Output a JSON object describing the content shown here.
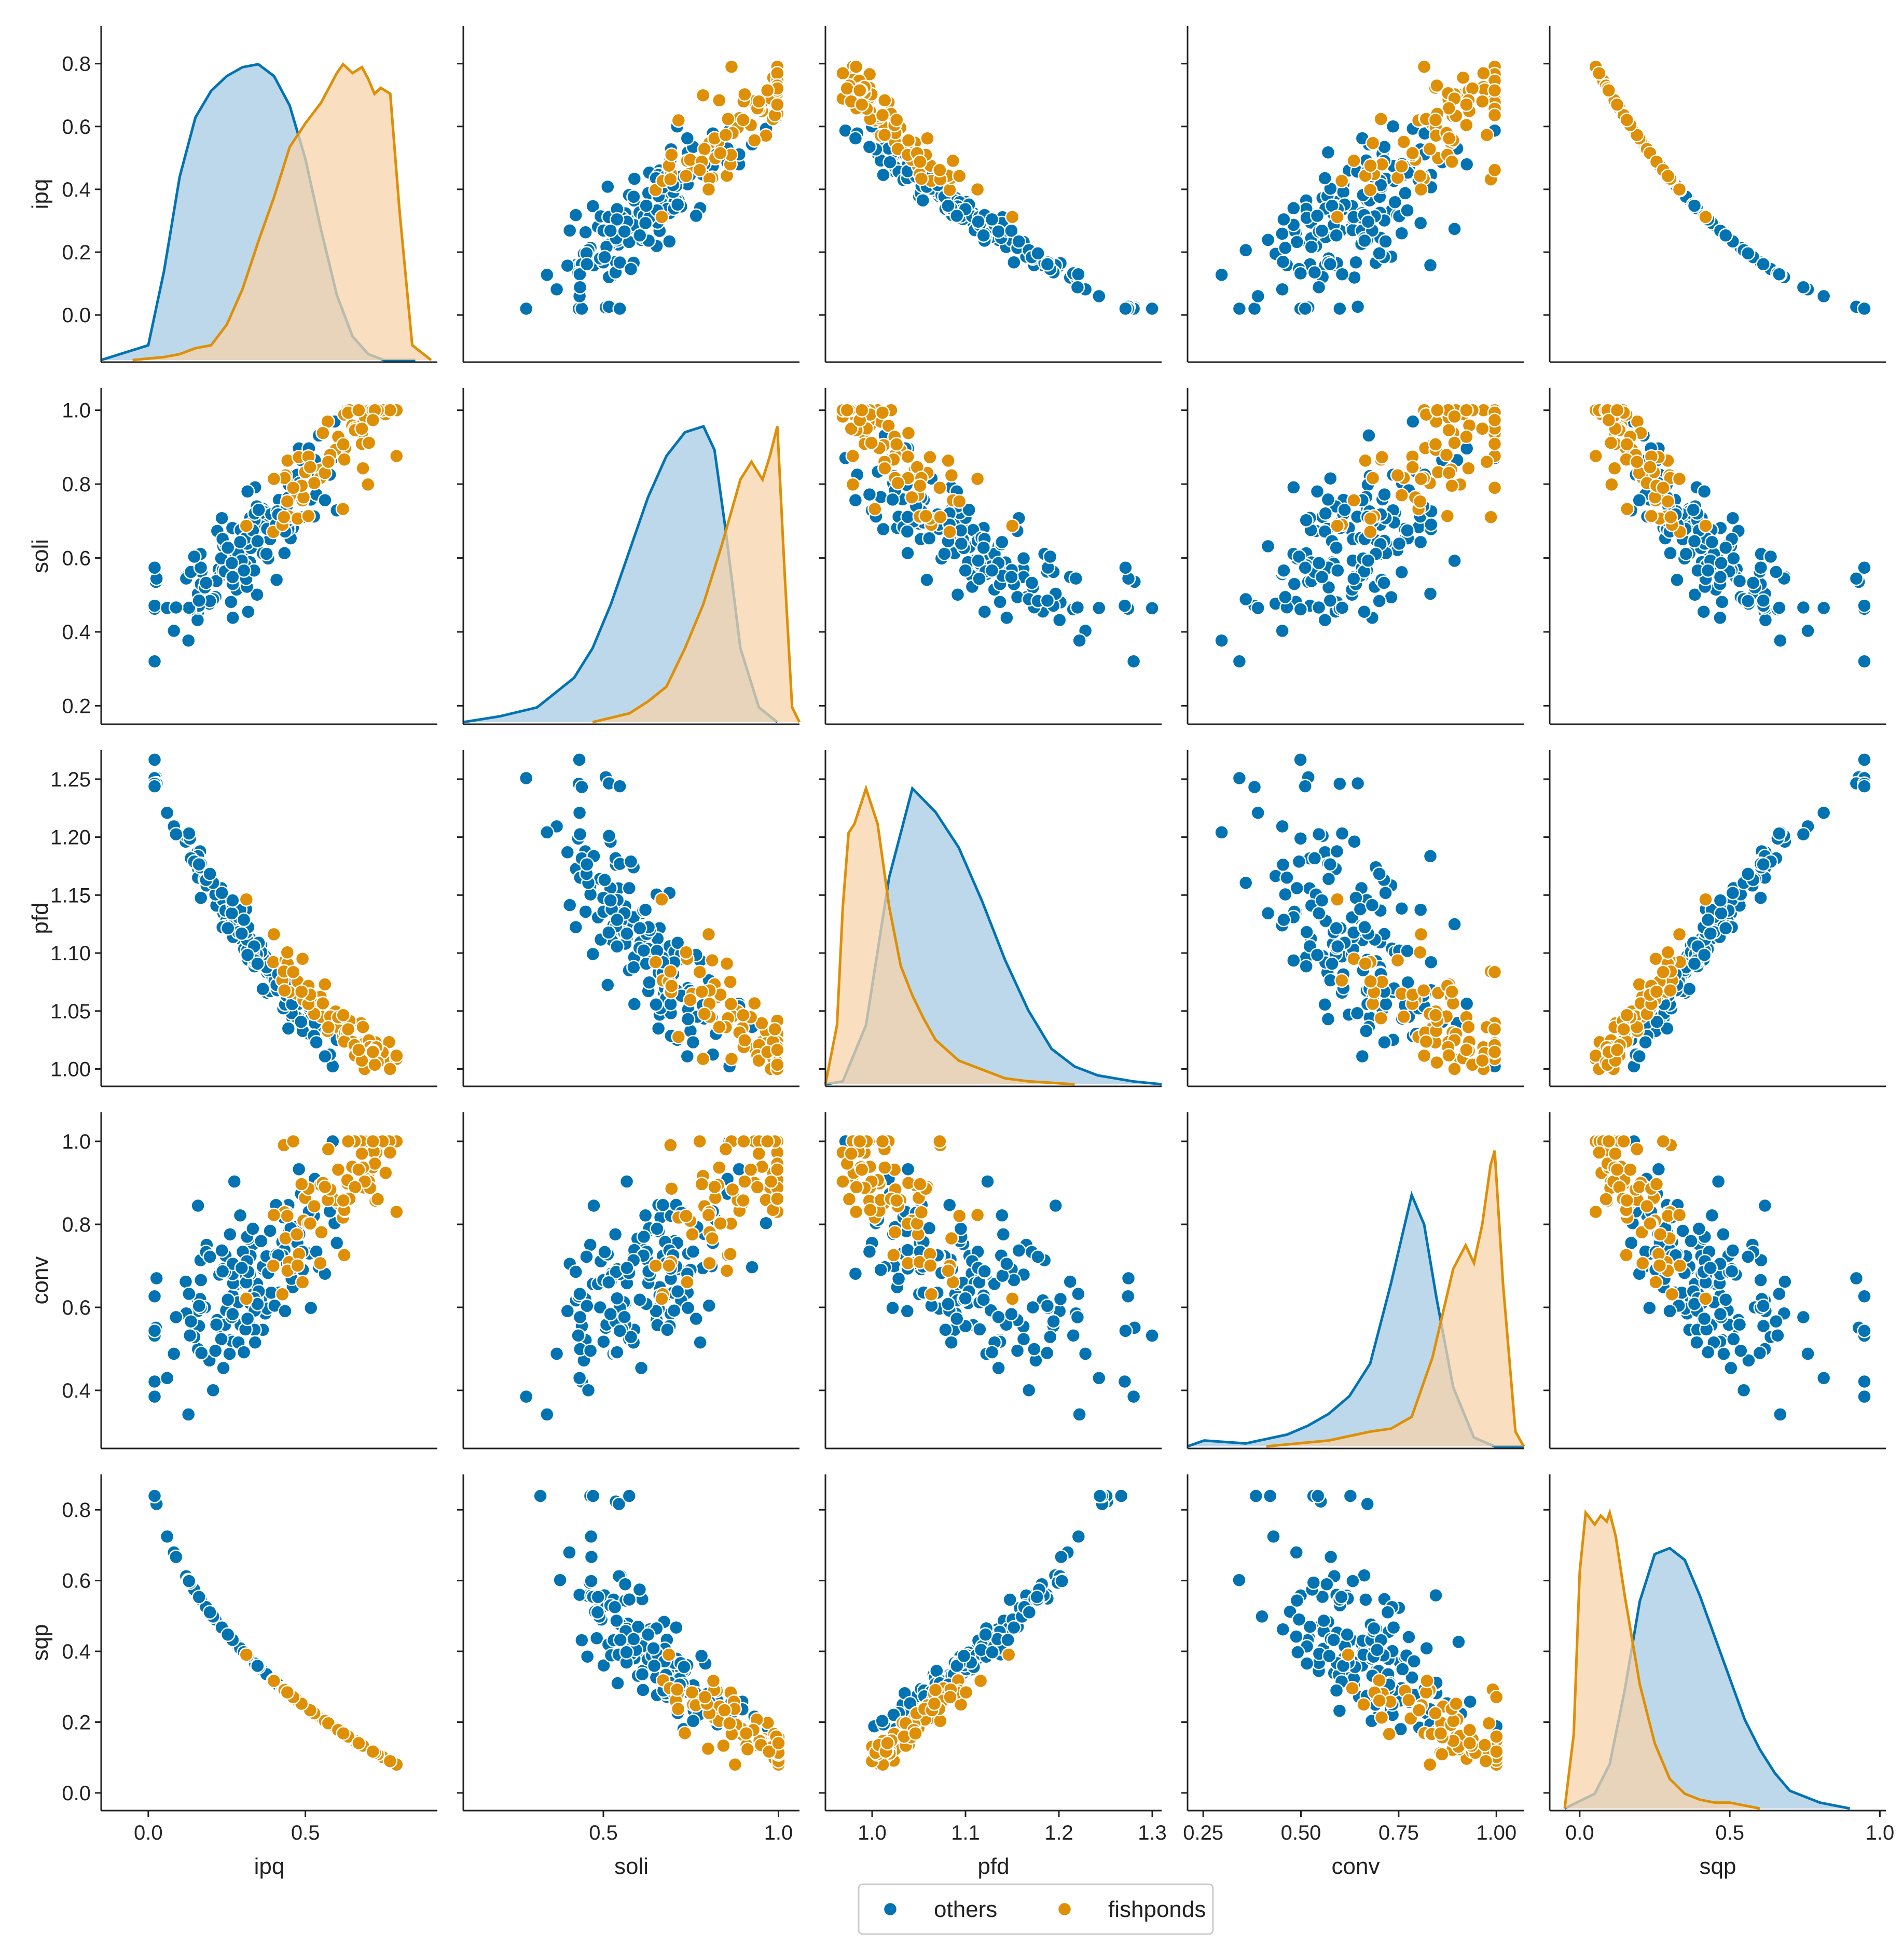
{
  "chart_data": {
    "type": "scatter",
    "kind": "pairplot",
    "variables": [
      "ipq",
      "soli",
      "pfd",
      "conv",
      "sqp"
    ],
    "axis_ranges": {
      "ipq": [
        -0.15,
        0.92
      ],
      "soli": [
        0.15,
        1.06
      ],
      "pfd": [
        0.985,
        1.275
      ],
      "conv": [
        0.26,
        1.07
      ],
      "sqp": [
        -0.05,
        0.9
      ]
    },
    "ticks": {
      "ipq": [
        0.0,
        0.2,
        0.4,
        0.6,
        0.8
      ],
      "soli": [
        0.2,
        0.4,
        0.6,
        0.8,
        1.0
      ],
      "pfd": [
        1.0,
        1.05,
        1.1,
        1.15,
        1.2,
        1.25
      ],
      "conv": [
        0.4,
        0.6,
        0.8,
        1.0
      ],
      "sqp": [
        0.0,
        0.2,
        0.4,
        0.6,
        0.8
      ]
    },
    "tick_labels_y": {
      "ipq": [
        "0.0",
        "0.2",
        "0.4",
        "0.6",
        "0.8"
      ],
      "soli": [
        "0.2",
        "0.4",
        "0.6",
        "0.8",
        "1.0"
      ],
      "pfd": [
        "1.00",
        "1.05",
        "1.10",
        "1.15",
        "1.20",
        "1.25"
      ],
      "conv": [
        "0.4",
        "0.6",
        "0.8",
        "1.0"
      ],
      "sqp": [
        "0.0",
        "0.2",
        "0.4",
        "0.6",
        "0.8"
      ]
    },
    "bottom_axes": [
      {
        "variable": "ipq",
        "range": [
          -0.15,
          0.92
        ],
        "ticks": [
          0.0,
          0.5
        ],
        "labels": [
          "0.0",
          "0.5"
        ]
      },
      {
        "variable": "soli",
        "range": [
          0.1,
          1.06
        ],
        "ticks": [
          0.5,
          1.0
        ],
        "labels": [
          "0.5",
          "1.0"
        ]
      },
      {
        "variable": "pfd",
        "range": [
          0.95,
          1.31
        ],
        "ticks": [
          1.0,
          1.1,
          1.2,
          1.3
        ],
        "labels": [
          "1.0",
          "1.1",
          "1.2",
          "1.3"
        ]
      },
      {
        "variable": "conv",
        "range": [
          0.21,
          1.07
        ],
        "ticks": [
          0.25,
          0.5,
          0.75,
          1.0
        ],
        "labels": [
          "0.25",
          "0.50",
          "0.75",
          "1.00"
        ]
      },
      {
        "variable": "sqp",
        "range": [
          -0.1,
          1.02
        ],
        "ticks": [
          0.0,
          0.5,
          1.0
        ],
        "labels": [
          "0.0",
          "0.5",
          "1.0"
        ]
      }
    ],
    "diagonal": "kde",
    "kde": {
      "ipq": {
        "others": {
          "x": [
            -0.15,
            0.0,
            0.05,
            0.1,
            0.15,
            0.2,
            0.25,
            0.3,
            0.35,
            0.4,
            0.45,
            0.5,
            0.55,
            0.6,
            0.65,
            0.7,
            0.75,
            0.8,
            0.85
          ],
          "density": [
            0,
            0.05,
            0.3,
            0.62,
            0.82,
            0.91,
            0.96,
            0.99,
            1.0,
            0.96,
            0.86,
            0.68,
            0.44,
            0.22,
            0.08,
            0.02,
            0,
            0,
            0
          ]
        },
        "fishponds": {
          "x": [
            -0.05,
            0.05,
            0.1,
            0.15,
            0.2,
            0.25,
            0.3,
            0.35,
            0.4,
            0.45,
            0.5,
            0.55,
            0.6,
            0.62,
            0.65,
            0.68,
            0.7,
            0.72,
            0.74,
            0.77,
            0.8,
            0.84,
            0.9
          ],
          "density": [
            0,
            0.01,
            0.02,
            0.04,
            0.05,
            0.12,
            0.24,
            0.4,
            0.55,
            0.72,
            0.8,
            0.87,
            0.97,
            1.0,
            0.97,
            0.99,
            0.95,
            0.9,
            0.92,
            0.9,
            0.5,
            0.05,
            0
          ]
        }
      },
      "soli": {
        "others": {
          "x": [
            0.15,
            0.25,
            0.35,
            0.45,
            0.5,
            0.55,
            0.6,
            0.65,
            0.7,
            0.75,
            0.8,
            0.83,
            0.86,
            0.9,
            0.95,
            1.0
          ],
          "density": [
            0,
            0.02,
            0.05,
            0.15,
            0.25,
            0.4,
            0.58,
            0.76,
            0.9,
            0.98,
            1.0,
            0.92,
            0.65,
            0.25,
            0.05,
            0
          ]
        },
        "fishponds": {
          "x": [
            0.5,
            0.6,
            0.65,
            0.7,
            0.75,
            0.8,
            0.85,
            0.9,
            0.93,
            0.96,
            0.98,
            1.0,
            1.02,
            1.04,
            1.06
          ],
          "density": [
            0,
            0.03,
            0.07,
            0.12,
            0.25,
            0.4,
            0.6,
            0.82,
            0.88,
            0.82,
            0.9,
            1.0,
            0.5,
            0.05,
            0
          ]
        }
      },
      "pfd": {
        "others": {
          "x": [
            0.985,
            1.0,
            1.02,
            1.04,
            1.06,
            1.08,
            1.1,
            1.12,
            1.14,
            1.16,
            1.18,
            1.2,
            1.22,
            1.25,
            1.275
          ],
          "density": [
            0,
            0.01,
            0.2,
            0.7,
            1.0,
            0.92,
            0.8,
            0.62,
            0.42,
            0.25,
            0.12,
            0.06,
            0.03,
            0.01,
            0
          ]
        },
        "fishponds": {
          "x": [
            0.985,
            0.995,
            1.0,
            1.005,
            1.01,
            1.02,
            1.03,
            1.04,
            1.05,
            1.06,
            1.07,
            1.08,
            1.1,
            1.12,
            1.14,
            1.16,
            1.2
          ],
          "density": [
            0,
            0.2,
            0.6,
            0.85,
            0.88,
            1.0,
            0.88,
            0.6,
            0.4,
            0.3,
            0.22,
            0.15,
            0.08,
            0.05,
            0.02,
            0.01,
            0
          ]
        }
      },
      "conv": {
        "others": {
          "x": [
            0.26,
            0.3,
            0.4,
            0.5,
            0.55,
            0.6,
            0.65,
            0.7,
            0.75,
            0.8,
            0.83,
            0.86,
            0.9,
            0.95,
            1.0,
            1.07
          ],
          "density": [
            0,
            0.02,
            0.01,
            0.04,
            0.07,
            0.11,
            0.17,
            0.28,
            0.55,
            0.85,
            0.75,
            0.5,
            0.2,
            0.03,
            0,
            0
          ]
        },
        "fishponds": {
          "x": [
            0.45,
            0.6,
            0.7,
            0.75,
            0.8,
            0.85,
            0.9,
            0.93,
            0.95,
            0.97,
            0.99,
            1.0,
            1.02,
            1.05,
            1.07
          ],
          "density": [
            0,
            0.02,
            0.05,
            0.06,
            0.1,
            0.3,
            0.6,
            0.68,
            0.62,
            0.75,
            0.95,
            1.0,
            0.55,
            0.05,
            0
          ]
        }
      },
      "sqp": {
        "others": {
          "x": [
            -0.05,
            0.05,
            0.1,
            0.15,
            0.2,
            0.25,
            0.3,
            0.35,
            0.4,
            0.45,
            0.5,
            0.55,
            0.6,
            0.65,
            0.7,
            0.8,
            0.9
          ],
          "density": [
            0,
            0.05,
            0.15,
            0.4,
            0.7,
            0.86,
            0.88,
            0.84,
            0.72,
            0.58,
            0.44,
            0.3,
            0.2,
            0.12,
            0.06,
            0.02,
            0
          ]
        },
        "fishponds": {
          "x": [
            -0.05,
            -0.02,
            0.0,
            0.02,
            0.05,
            0.07,
            0.09,
            0.1,
            0.12,
            0.15,
            0.2,
            0.25,
            0.3,
            0.35,
            0.4,
            0.45,
            0.5,
            0.55,
            0.6
          ],
          "density": [
            0,
            0.25,
            0.8,
            1.0,
            0.96,
            0.99,
            0.97,
            1.0,
            0.92,
            0.72,
            0.42,
            0.22,
            0.1,
            0.05,
            0.03,
            0.02,
            0.02,
            0.01,
            0
          ]
        }
      }
    },
    "legend": {
      "placement": "bottom-center",
      "entries": [
        "others",
        "fishponds"
      ]
    },
    "sample_size": {
      "others": 150,
      "fishponds": 70
    }
  },
  "legend_labels": {
    "others": "others",
    "fishponds": "fishponds"
  },
  "colors": {
    "others": "#0173b2",
    "fishponds": "#de8f05",
    "others_fill": "#a7cbe3",
    "fishponds_fill": "#f7d3ab",
    "axis": "#222222"
  },
  "icons": {
    "others": "circle-marker-icon",
    "fishponds": "circle-marker-icon"
  }
}
